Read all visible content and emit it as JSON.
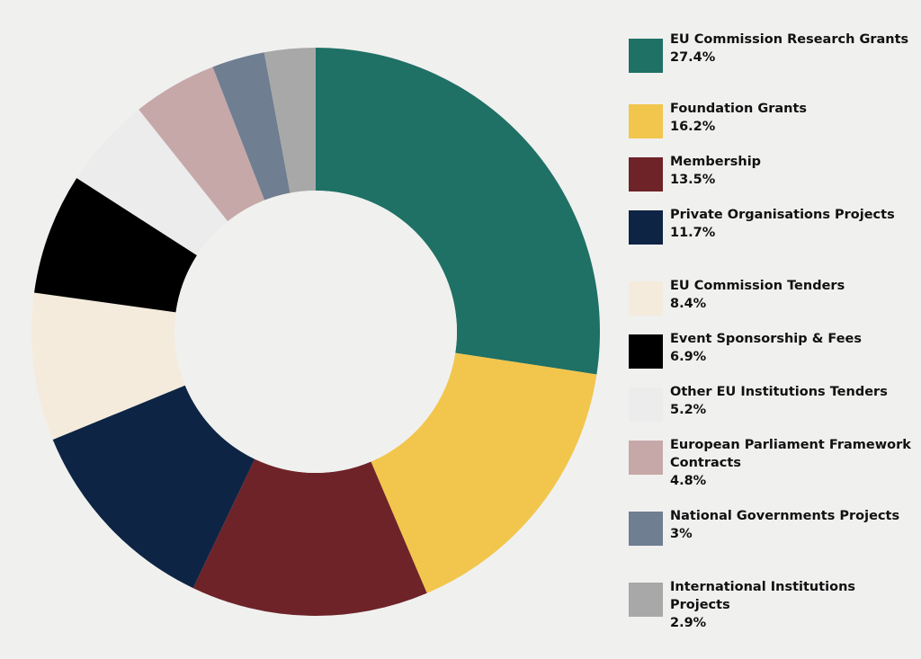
{
  "chart_data": {
    "type": "pie",
    "title": "",
    "value_suffix": "%",
    "slices": [
      {
        "label": "EU Commission Research Grants",
        "value": 27.4,
        "display_value": "27.4%",
        "color": "#1f7065"
      },
      {
        "label": "Foundation Grants",
        "value": 16.2,
        "display_value": "16.2%",
        "color": "#f2c64c"
      },
      {
        "label": "Membership",
        "value": 13.5,
        "display_value": "13.5%",
        "color": "#6e2328"
      },
      {
        "label": "Private Organisations Projects",
        "value": 11.7,
        "display_value": "11.7%",
        "color": "#0e2444"
      },
      {
        "label": "EU Commission Tenders",
        "value": 8.4,
        "display_value": "8.4%",
        "color": "#f4ebdc"
      },
      {
        "label": "Event Sponsorship & Fees",
        "value": 6.9,
        "display_value": "6.9%",
        "color": "#000000"
      },
      {
        "label": "Other EU Institutions Tenders",
        "value": 5.2,
        "display_value": "5.2%",
        "color": "#ececec"
      },
      {
        "label": "European Parliament Framework Contracts",
        "value": 4.8,
        "display_value": "4.8%",
        "color": "#c6a8a9"
      },
      {
        "label": "National Governments Projects",
        "value": 3,
        "display_value": "3%",
        "color": "#6f7e91"
      },
      {
        "label": "International Institutions Projects",
        "value": 2.9,
        "display_value": "2.9%",
        "color": "#a8a8a8"
      }
    ],
    "legend_position": "right",
    "background": "#f0f0ef"
  }
}
